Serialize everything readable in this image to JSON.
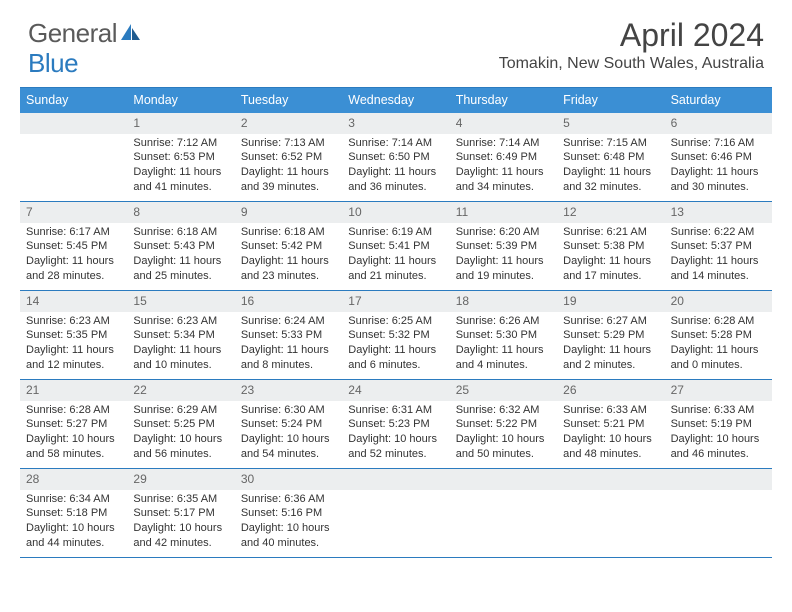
{
  "logo": {
    "text1": "General",
    "text2": "Blue"
  },
  "title": {
    "month": "April 2024",
    "location": "Tomakin, New South Wales, Australia"
  },
  "colors": {
    "header_bg": "#3b8fd4",
    "header_text": "#ffffff",
    "rule": "#2b7bbf",
    "daynum_bg": "#eceeef",
    "daynum_text": "#666666",
    "body_text": "#333333",
    "logo_gray": "#5a5a5a",
    "logo_blue": "#2b7bbf"
  },
  "day_names": [
    "Sunday",
    "Monday",
    "Tuesday",
    "Wednesday",
    "Thursday",
    "Friday",
    "Saturday"
  ],
  "first_weekday": 1,
  "days_in_month": 30,
  "days": {
    "1": {
      "sunrise": "7:12 AM",
      "sunset": "6:53 PM",
      "daylight": "11 hours and 41 minutes."
    },
    "2": {
      "sunrise": "7:13 AM",
      "sunset": "6:52 PM",
      "daylight": "11 hours and 39 minutes."
    },
    "3": {
      "sunrise": "7:14 AM",
      "sunset": "6:50 PM",
      "daylight": "11 hours and 36 minutes."
    },
    "4": {
      "sunrise": "7:14 AM",
      "sunset": "6:49 PM",
      "daylight": "11 hours and 34 minutes."
    },
    "5": {
      "sunrise": "7:15 AM",
      "sunset": "6:48 PM",
      "daylight": "11 hours and 32 minutes."
    },
    "6": {
      "sunrise": "7:16 AM",
      "sunset": "6:46 PM",
      "daylight": "11 hours and 30 minutes."
    },
    "7": {
      "sunrise": "6:17 AM",
      "sunset": "5:45 PM",
      "daylight": "11 hours and 28 minutes."
    },
    "8": {
      "sunrise": "6:18 AM",
      "sunset": "5:43 PM",
      "daylight": "11 hours and 25 minutes."
    },
    "9": {
      "sunrise": "6:18 AM",
      "sunset": "5:42 PM",
      "daylight": "11 hours and 23 minutes."
    },
    "10": {
      "sunrise": "6:19 AM",
      "sunset": "5:41 PM",
      "daylight": "11 hours and 21 minutes."
    },
    "11": {
      "sunrise": "6:20 AM",
      "sunset": "5:39 PM",
      "daylight": "11 hours and 19 minutes."
    },
    "12": {
      "sunrise": "6:21 AM",
      "sunset": "5:38 PM",
      "daylight": "11 hours and 17 minutes."
    },
    "13": {
      "sunrise": "6:22 AM",
      "sunset": "5:37 PM",
      "daylight": "11 hours and 14 minutes."
    },
    "14": {
      "sunrise": "6:23 AM",
      "sunset": "5:35 PM",
      "daylight": "11 hours and 12 minutes."
    },
    "15": {
      "sunrise": "6:23 AM",
      "sunset": "5:34 PM",
      "daylight": "11 hours and 10 minutes."
    },
    "16": {
      "sunrise": "6:24 AM",
      "sunset": "5:33 PM",
      "daylight": "11 hours and 8 minutes."
    },
    "17": {
      "sunrise": "6:25 AM",
      "sunset": "5:32 PM",
      "daylight": "11 hours and 6 minutes."
    },
    "18": {
      "sunrise": "6:26 AM",
      "sunset": "5:30 PM",
      "daylight": "11 hours and 4 minutes."
    },
    "19": {
      "sunrise": "6:27 AM",
      "sunset": "5:29 PM",
      "daylight": "11 hours and 2 minutes."
    },
    "20": {
      "sunrise": "6:28 AM",
      "sunset": "5:28 PM",
      "daylight": "11 hours and 0 minutes."
    },
    "21": {
      "sunrise": "6:28 AM",
      "sunset": "5:27 PM",
      "daylight": "10 hours and 58 minutes."
    },
    "22": {
      "sunrise": "6:29 AM",
      "sunset": "5:25 PM",
      "daylight": "10 hours and 56 minutes."
    },
    "23": {
      "sunrise": "6:30 AM",
      "sunset": "5:24 PM",
      "daylight": "10 hours and 54 minutes."
    },
    "24": {
      "sunrise": "6:31 AM",
      "sunset": "5:23 PM",
      "daylight": "10 hours and 52 minutes."
    },
    "25": {
      "sunrise": "6:32 AM",
      "sunset": "5:22 PM",
      "daylight": "10 hours and 50 minutes."
    },
    "26": {
      "sunrise": "6:33 AM",
      "sunset": "5:21 PM",
      "daylight": "10 hours and 48 minutes."
    },
    "27": {
      "sunrise": "6:33 AM",
      "sunset": "5:19 PM",
      "daylight": "10 hours and 46 minutes."
    },
    "28": {
      "sunrise": "6:34 AM",
      "sunset": "5:18 PM",
      "daylight": "10 hours and 44 minutes."
    },
    "29": {
      "sunrise": "6:35 AM",
      "sunset": "5:17 PM",
      "daylight": "10 hours and 42 minutes."
    },
    "30": {
      "sunrise": "6:36 AM",
      "sunset": "5:16 PM",
      "daylight": "10 hours and 40 minutes."
    }
  },
  "labels": {
    "sunrise": "Sunrise:",
    "sunset": "Sunset:",
    "daylight": "Daylight:"
  }
}
